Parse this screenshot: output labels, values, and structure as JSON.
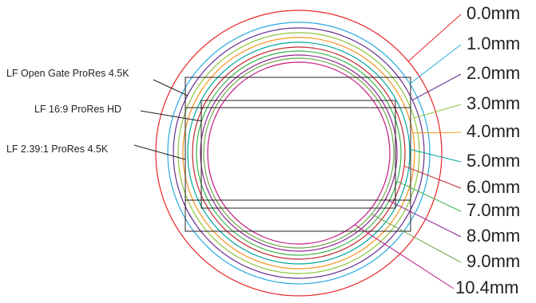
{
  "diagram": {
    "format_labels": [
      {
        "id": "open-gate",
        "text": "LF Open Gate ProRes 4.5K"
      },
      {
        "id": "hd",
        "text": "LF 16:9 ProRes HD"
      },
      {
        "id": "scope",
        "text": "LF 2.39:1 ProRes 4.5K"
      }
    ],
    "distance_labels": [
      {
        "text": "0.0mm",
        "color": "#e8262a"
      },
      {
        "text": "1.0mm",
        "color": "#27aae1"
      },
      {
        "text": "2.0mm",
        "color": "#662d91"
      },
      {
        "text": "3.0mm",
        "color": "#8dc63f"
      },
      {
        "text": "4.0mm",
        "color": "#f7941d"
      },
      {
        "text": "5.0mm",
        "color": "#00a79d"
      },
      {
        "text": "6.0mm",
        "color": "#c1272d"
      },
      {
        "text": "7.0mm",
        "color": "#39b54a"
      },
      {
        "text": "8.0mm",
        "color": "#92278f"
      },
      {
        "text": "9.0mm",
        "color": "#72a64f"
      },
      {
        "text": "10.4mm",
        "color": "#c2187f"
      }
    ]
  }
}
